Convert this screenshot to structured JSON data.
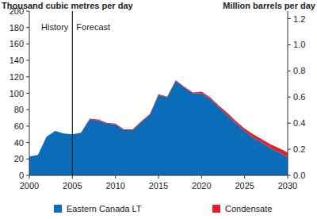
{
  "chart_data": {
    "type": "area",
    "stacked": true,
    "grid": false,
    "legend": "bottom",
    "y_label": "Thousand cubic metres per day",
    "y2_label": "Million barrels per day",
    "x": [
      2000,
      2001,
      2002,
      2003,
      2004,
      2005,
      2006,
      2007,
      2008,
      2009,
      2010,
      2011,
      2012,
      2013,
      2014,
      2015,
      2016,
      2017,
      2018,
      2019,
      2020,
      2021,
      2022,
      2023,
      2024,
      2025,
      2026,
      2027,
      2028,
      2029,
      2030
    ],
    "series": [
      {
        "name": "Eastern Canada LT",
        "color": "#0b6db7",
        "values": [
          23,
          25,
          47,
          54,
          51,
          50,
          52,
          68,
          67,
          63,
          62,
          55,
          55,
          65,
          74,
          98,
          95,
          115,
          107,
          100,
          100,
          93,
          83,
          73,
          63,
          54,
          46,
          40,
          33,
          28,
          22
        ]
      },
      {
        "name": "Condensate",
        "color": "#e3202b",
        "values": [
          0,
          0,
          0,
          0,
          0,
          0,
          0,
          1,
          1,
          1,
          1,
          1,
          1,
          1,
          1,
          1,
          1,
          1,
          1,
          1,
          2,
          2,
          2,
          3,
          3,
          3,
          4,
          4,
          5,
          5,
          6
        ]
      }
    ],
    "xlim": [
      2000,
      2030
    ],
    "xticks": [
      2000,
      2005,
      2010,
      2015,
      2020,
      2025,
      2030
    ],
    "ylim": [
      0,
      200
    ],
    "yticks": [
      0,
      20,
      40,
      60,
      80,
      100,
      120,
      140,
      160,
      180,
      200
    ],
    "y2lim": [
      0,
      1.258
    ],
    "y2ticks": [
      {
        "value": 0,
        "label": "0.0"
      },
      0.2,
      0.4,
      0.6,
      0.8,
      {
        "value": 1,
        "label": "1.0"
      },
      1.2
    ],
    "vline": 2005,
    "annotations": [
      {
        "text": "History",
        "x": 2005
      },
      {
        "text": "Forecast",
        "x": 2005
      }
    ]
  }
}
